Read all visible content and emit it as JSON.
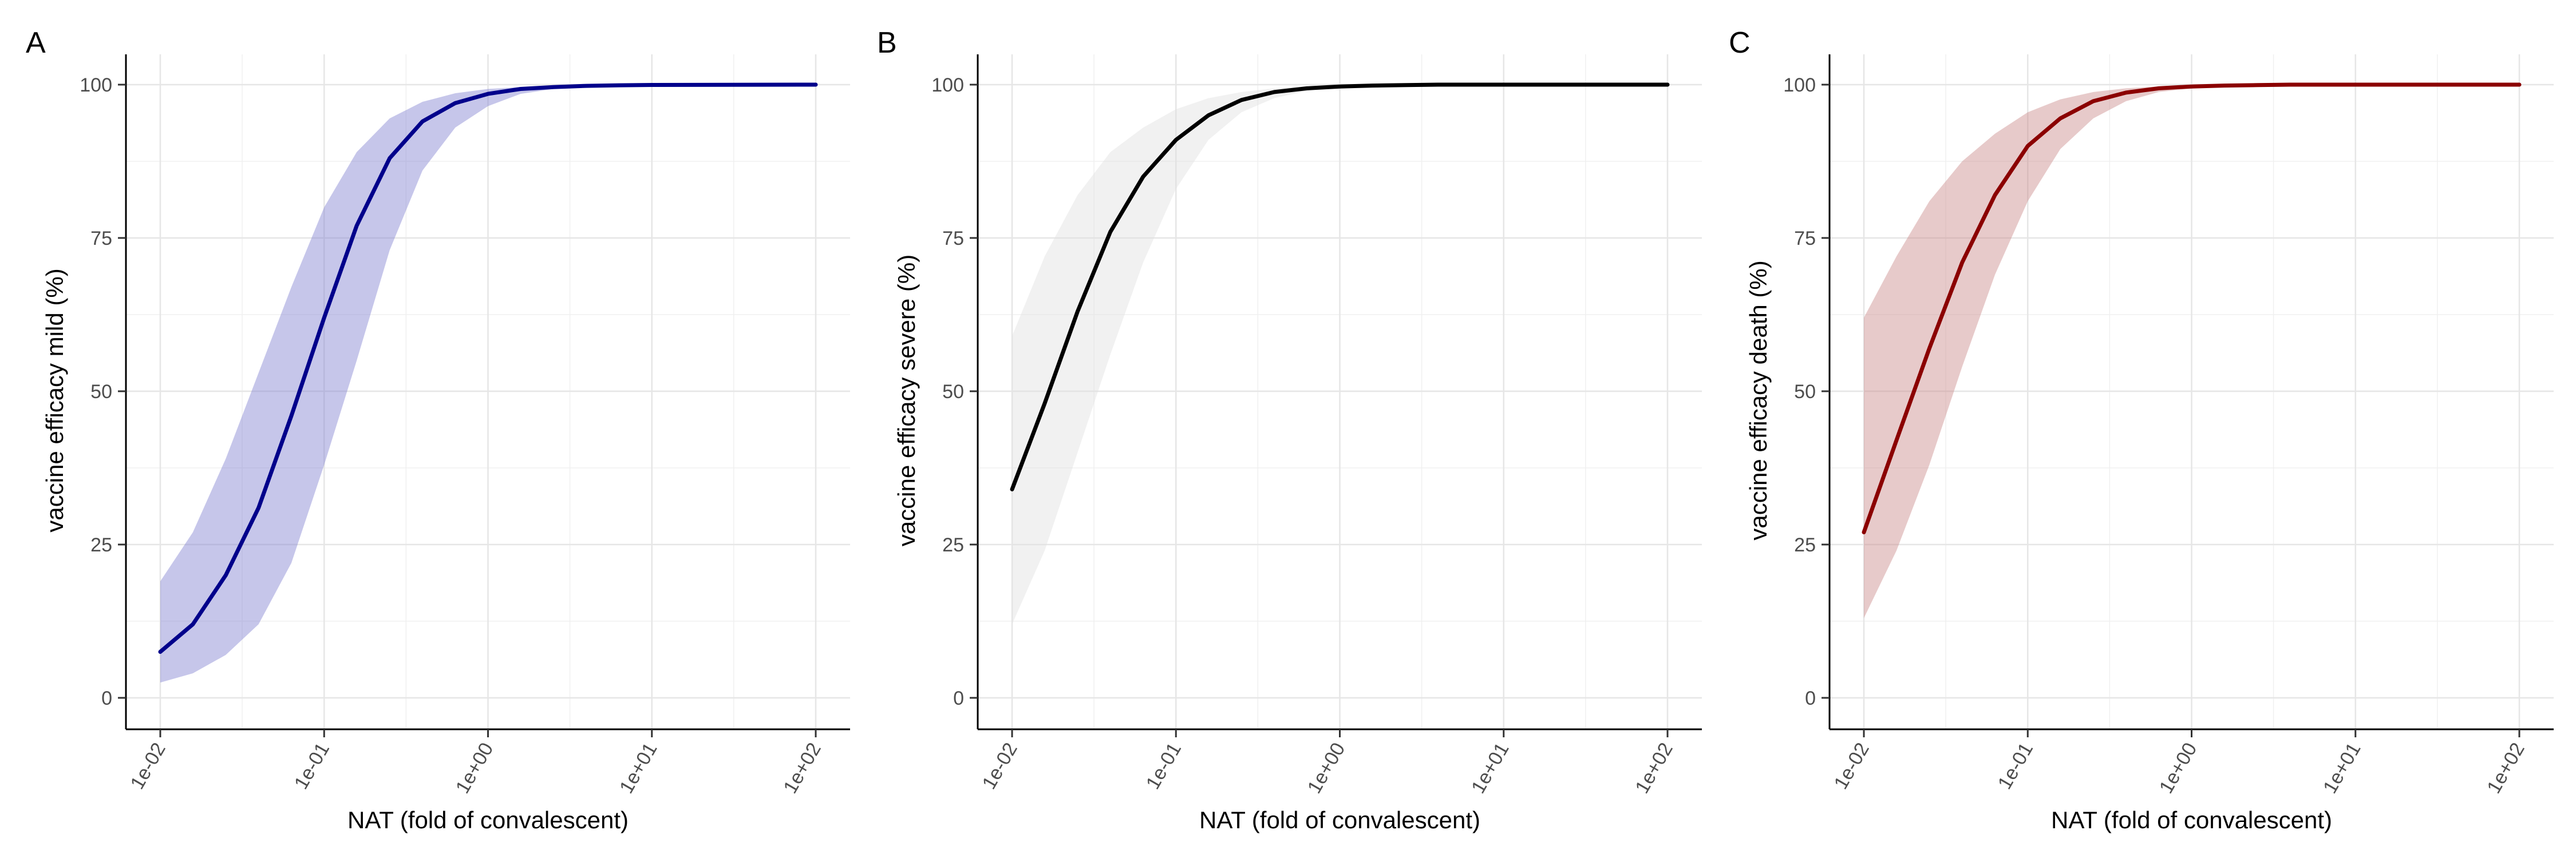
{
  "chart_data": [
    {
      "type": "line",
      "panel": "A",
      "xlabel": "NAT  (fold of convalescent)",
      "ylabel": "vaccine efficacy mild (%)",
      "x_scale": "log10",
      "xlim": [
        0.01,
        100
      ],
      "ylim": [
        0,
        100
      ],
      "x_ticks": [
        "1e-02",
        "1e-01",
        "1e+00",
        "1e+01",
        "1e+02"
      ],
      "y_ticks": [
        "0",
        "25",
        "50",
        "75",
        "100"
      ],
      "grid": true,
      "color": "#00008b",
      "band_color": "#8080d0",
      "x": [
        0.01,
        0.0158,
        0.0251,
        0.0398,
        0.0631,
        0.1,
        0.158,
        0.251,
        0.398,
        0.631,
        1,
        1.58,
        2.51,
        3.98,
        6.31,
        10,
        100
      ],
      "y": [
        7.5,
        12,
        20,
        31,
        46,
        62,
        77,
        88,
        94,
        97,
        98.5,
        99.3,
        99.6,
        99.8,
        99.9,
        99.95,
        100
      ],
      "lower": [
        2.5,
        4,
        7,
        12,
        22,
        38,
        55,
        73,
        86,
        93,
        96.5,
        98.5,
        99.3,
        99.6,
        99.8,
        99.9,
        100
      ],
      "upper": [
        19,
        27,
        39,
        53,
        67,
        80,
        89,
        94.5,
        97.2,
        98.6,
        99.3,
        99.6,
        99.8,
        99.9,
        99.95,
        100,
        100
      ]
    },
    {
      "type": "line",
      "panel": "B",
      "xlabel": "NAT  (fold of convalescent)",
      "ylabel": "vaccine efficacy severe (%)",
      "x_scale": "log10",
      "xlim": [
        0.01,
        100
      ],
      "ylim": [
        0,
        100
      ],
      "x_ticks": [
        "1e-02",
        "1e-01",
        "1e+00",
        "1e+01",
        "1e+02"
      ],
      "y_ticks": [
        "0",
        "25",
        "50",
        "75",
        "100"
      ],
      "grid": true,
      "color": "#000000",
      "band_color": "#e0e0e0",
      "x": [
        0.01,
        0.0158,
        0.0251,
        0.0398,
        0.0631,
        0.1,
        0.158,
        0.251,
        0.398,
        0.631,
        1,
        1.58,
        2.51,
        3.98,
        10,
        100
      ],
      "y": [
        34,
        48,
        63,
        76,
        85,
        91,
        95,
        97.5,
        98.8,
        99.4,
        99.7,
        99.85,
        99.93,
        100,
        100,
        100
      ],
      "lower": [
        12,
        24,
        40,
        56,
        71,
        83,
        91,
        95.5,
        97.8,
        99,
        99.5,
        99.8,
        99.9,
        100,
        100,
        100
      ],
      "upper": [
        59,
        72,
        82,
        89,
        93,
        96,
        97.8,
        98.8,
        99.4,
        99.7,
        99.85,
        99.93,
        100,
        100,
        100,
        100
      ]
    },
    {
      "type": "line",
      "panel": "C",
      "xlabel": "NAT  (fold of convalescent)",
      "ylabel": "vaccine efficacy death (%)",
      "x_scale": "log10",
      "xlim": [
        0.01,
        100
      ],
      "ylim": [
        0,
        100
      ],
      "x_ticks": [
        "1e-02",
        "1e-01",
        "1e+00",
        "1e+01",
        "1e+02"
      ],
      "y_ticks": [
        "0",
        "25",
        "50",
        "75",
        "100"
      ],
      "grid": true,
      "color": "#8b0000",
      "band_color": "#c98a8a",
      "x": [
        0.01,
        0.0158,
        0.0251,
        0.0398,
        0.0631,
        0.1,
        0.158,
        0.251,
        0.398,
        0.631,
        1,
        1.58,
        2.51,
        3.98,
        10,
        100
      ],
      "y": [
        27,
        42,
        57,
        71,
        82,
        90,
        94.5,
        97.3,
        98.7,
        99.4,
        99.7,
        99.85,
        99.93,
        100,
        100,
        100
      ],
      "lower": [
        13,
        24,
        38,
        54,
        69,
        81,
        89.5,
        94.5,
        97.3,
        98.8,
        99.4,
        99.7,
        99.85,
        100,
        100,
        100
      ],
      "upper": [
        62,
        72,
        81,
        87.5,
        92,
        95.5,
        97.6,
        98.8,
        99.4,
        99.7,
        99.85,
        99.93,
        100,
        100,
        100,
        100
      ]
    }
  ]
}
